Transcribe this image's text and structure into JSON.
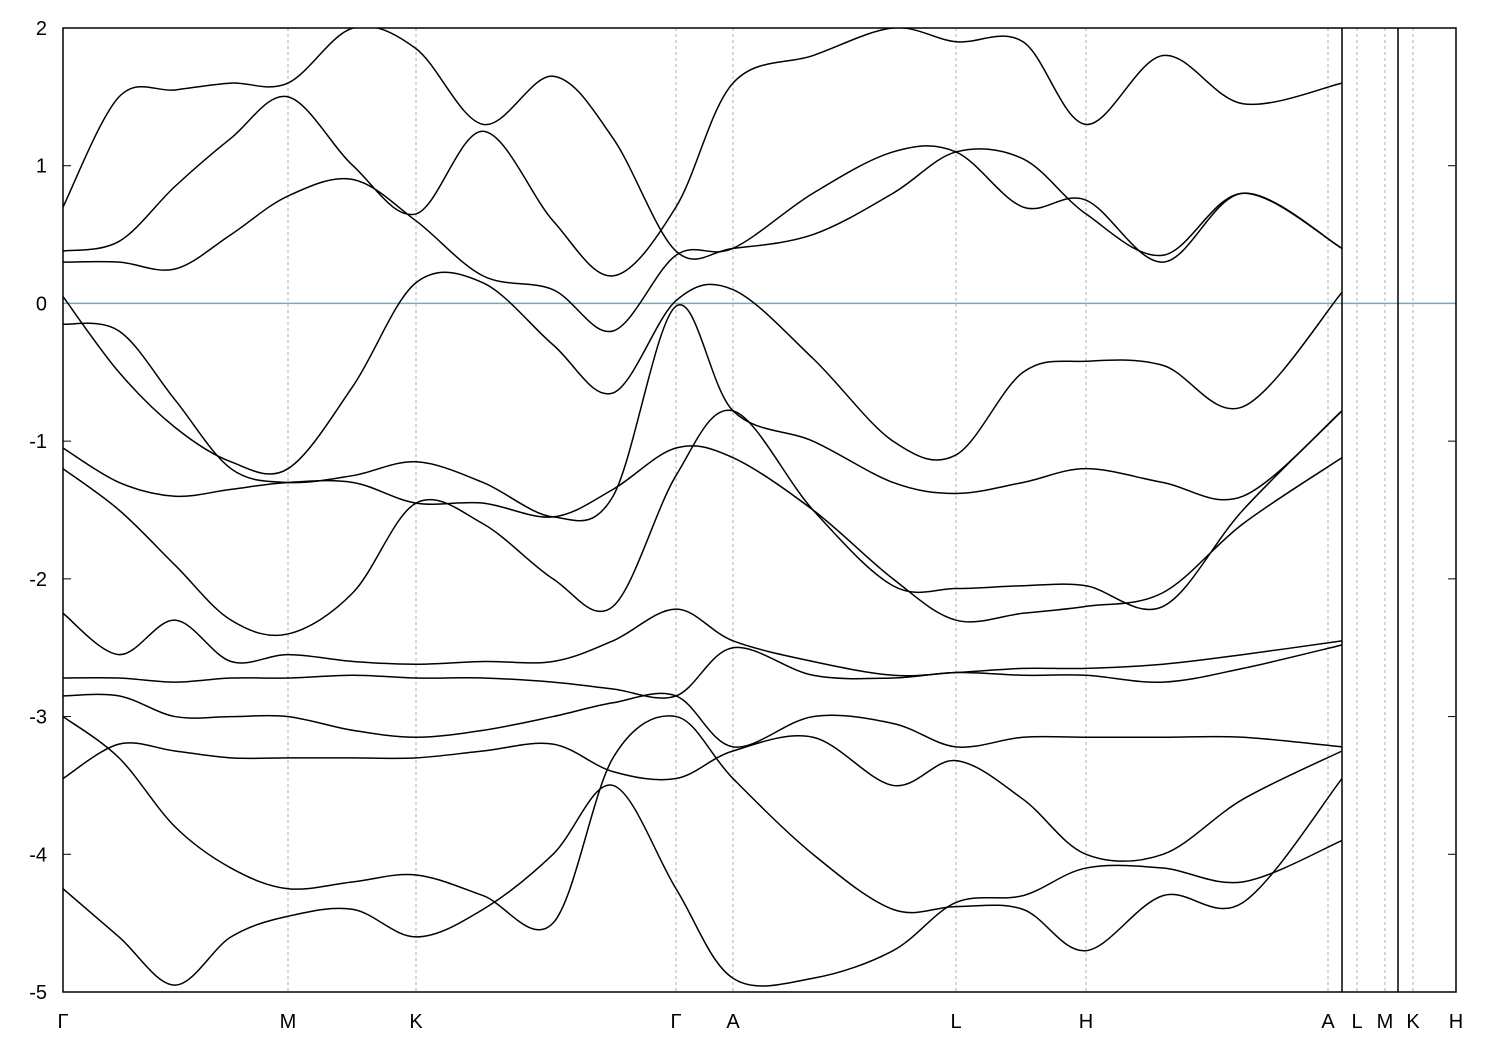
{
  "chart_data": {
    "type": "line",
    "color": "#000000",
    "fermi_level": 0,
    "fermi_color": "#5ab4c8",
    "xlim": [
      0,
      1393
    ],
    "ylim": [
      -5,
      2
    ],
    "yticks": [
      2,
      1,
      0,
      -1,
      -2,
      -3,
      -4,
      -5
    ],
    "xticks": [
      {
        "value": 0,
        "label": "Γ"
      },
      {
        "value": 225,
        "label": "M"
      },
      {
        "value": 353,
        "label": "K"
      },
      {
        "value": 613,
        "label": "Γ"
      },
      {
        "value": 670,
        "label": "A"
      },
      {
        "value": 893,
        "label": "L"
      },
      {
        "value": 1023,
        "label": "H"
      },
      {
        "value": 1265,
        "label": "A"
      },
      {
        "value": 1294,
        "label": "L"
      },
      {
        "value": 1322,
        "label": "M"
      },
      {
        "value": 1350,
        "label": "K"
      },
      {
        "value": 1393,
        "label": "H"
      }
    ],
    "x": [
      0,
      56,
      112,
      168,
      225,
      290,
      353,
      420,
      490,
      550,
      613,
      670,
      750,
      830,
      893,
      960,
      1023,
      1100,
      1180,
      1279
    ],
    "series": [
      {
        "values": [
          0.05,
          -0.5,
          -0.9,
          -1.15,
          -1.2,
          -0.6,
          0.15,
          0.15,
          -0.3,
          -0.65,
          0.02,
          0.1,
          -0.4,
          -1.0,
          -1.1,
          -0.5,
          -0.42,
          -0.45,
          -0.75,
          0.08
        ]
      },
      {
        "values": [
          0.3,
          0.3,
          0.25,
          0.5,
          0.78,
          0.9,
          0.6,
          0.2,
          0.1,
          -0.2,
          0.35,
          0.4,
          0.8,
          1.1,
          1.1,
          0.7,
          0.75,
          0.3,
          0.8,
          0.4
        ]
      },
      {
        "values": [
          0.38,
          0.45,
          0.85,
          1.2,
          1.5,
          1.0,
          0.65,
          1.25,
          0.6,
          0.2,
          0.7,
          1.6,
          1.8,
          2.0,
          1.9,
          1.9,
          1.3,
          1.8,
          1.45,
          1.6
        ]
      },
      {
        "values": [
          0.7,
          1.5,
          1.55,
          1.6,
          1.6,
          2.0,
          1.85,
          1.3,
          1.65,
          1.2,
          0.38,
          0.4,
          0.5,
          0.8,
          1.1,
          1.05,
          0.65,
          0.35,
          0.8,
          0.4
        ]
      },
      {
        "values": [
          -0.15,
          -0.2,
          -0.7,
          -1.2,
          -1.3,
          -1.25,
          -1.15,
          -1.3,
          -1.55,
          -1.4,
          -0.02,
          -0.78,
          -1.0,
          -1.3,
          -1.38,
          -1.3,
          -1.2,
          -1.3,
          -1.4,
          -0.78
        ]
      },
      {
        "values": [
          -1.05,
          -1.3,
          -1.4,
          -1.35,
          -1.3,
          -1.3,
          -1.45,
          -1.45,
          -1.55,
          -1.35,
          -1.05,
          -1.12,
          -1.5,
          -2.0,
          -2.3,
          -2.25,
          -2.2,
          -2.1,
          -1.6,
          -1.12
        ]
      },
      {
        "values": [
          -1.2,
          -1.5,
          -1.9,
          -2.3,
          -2.4,
          -2.1,
          -1.45,
          -1.6,
          -2.0,
          -2.2,
          -1.25,
          -0.78,
          -1.5,
          -2.05,
          -2.07,
          -2.05,
          -2.05,
          -2.2,
          -1.5,
          -0.78
        ]
      },
      {
        "values": [
          -2.25,
          -2.55,
          -2.3,
          -2.6,
          -2.55,
          -2.6,
          -2.62,
          -2.6,
          -2.6,
          -2.45,
          -2.22,
          -2.45,
          -2.6,
          -2.7,
          -2.68,
          -2.65,
          -2.65,
          -2.62,
          -2.55,
          -2.45
        ]
      },
      {
        "values": [
          -2.72,
          -2.72,
          -2.75,
          -2.72,
          -2.72,
          -2.7,
          -2.72,
          -2.72,
          -2.75,
          -2.8,
          -2.85,
          -2.5,
          -2.7,
          -2.72,
          -2.68,
          -2.7,
          -2.7,
          -2.75,
          -2.65,
          -2.48
        ]
      },
      {
        "values": [
          -2.85,
          -2.85,
          -3.0,
          -3.0,
          -3.0,
          -3.1,
          -3.15,
          -3.1,
          -3.0,
          -2.9,
          -2.85,
          -3.22,
          -3.0,
          -3.05,
          -3.22,
          -3.15,
          -3.15,
          -3.15,
          -3.15,
          -3.22
        ]
      },
      {
        "values": [
          -3.45,
          -3.2,
          -3.25,
          -3.3,
          -3.3,
          -3.3,
          -3.3,
          -3.25,
          -3.2,
          -3.4,
          -3.45,
          -3.25,
          -3.15,
          -3.5,
          -3.32,
          -3.6,
          -4.0,
          -4.0,
          -3.6,
          -3.25
        ]
      },
      {
        "values": [
          -3.0,
          -3.3,
          -3.8,
          -4.1,
          -4.25,
          -4.2,
          -4.15,
          -4.3,
          -4.5,
          -3.3,
          -3.0,
          -3.45,
          -4.0,
          -4.4,
          -4.38,
          -4.4,
          -4.7,
          -4.3,
          -4.35,
          -3.45
        ]
      },
      {
        "values": [
          -4.25,
          -4.6,
          -4.95,
          -4.6,
          -4.45,
          -4.4,
          -4.6,
          -4.4,
          -4.0,
          -3.5,
          -4.25,
          -4.9,
          -4.9,
          -4.7,
          -4.35,
          -4.3,
          -4.1,
          -4.1,
          -4.2,
          -3.9
        ]
      }
    ]
  }
}
